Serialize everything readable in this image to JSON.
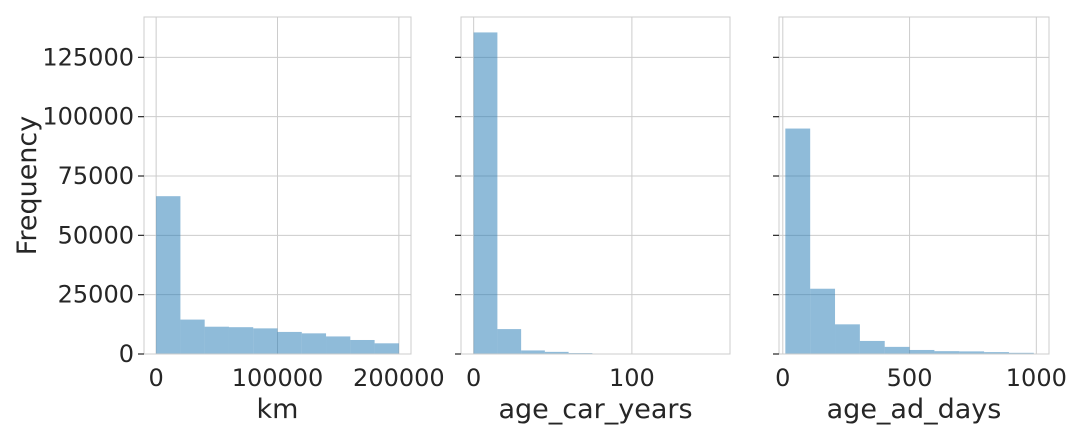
{
  "chart_data": {
    "type": "bar",
    "layout": "1x3 subplots, shared y-axis",
    "ylabel": "Frequency",
    "ylim": [
      0,
      142000
    ],
    "yticks": [
      0,
      25000,
      50000,
      75000,
      100000,
      125000
    ],
    "grid": true,
    "bar_color": "#1f77b4",
    "bar_alpha": 0.5,
    "panels": [
      {
        "xlabel": "km",
        "xlim": [
          -10000,
          210000
        ],
        "xticks": [
          0,
          100000,
          200000
        ],
        "bin_edges": [
          0,
          20000,
          40000,
          60000,
          80000,
          100000,
          120000,
          140000,
          160000,
          180000,
          200000
        ],
        "counts": [
          66500,
          14500,
          11500,
          11300,
          10800,
          9300,
          8700,
          7400,
          5900,
          4500
        ]
      },
      {
        "xlabel": "age_car_years",
        "xlim": [
          -8,
          162
        ],
        "xticks": [
          0,
          100
        ],
        "bin_edges": [
          0,
          15,
          30,
          45,
          60,
          75,
          90,
          105,
          120,
          135,
          150
        ],
        "counts": [
          135500,
          10500,
          1500,
          900,
          400,
          150,
          80,
          50,
          30,
          20
        ]
      },
      {
        "xlabel": "age_ad_days",
        "xlim": [
          -15,
          1050
        ],
        "xticks": [
          0,
          500,
          1000
        ],
        "bin_edges": [
          10,
          108,
          206,
          304,
          402,
          500,
          598,
          696,
          794,
          892,
          990
        ],
        "counts": [
          95000,
          27500,
          12500,
          5500,
          3000,
          1700,
          1200,
          1100,
          800,
          500
        ]
      }
    ]
  }
}
